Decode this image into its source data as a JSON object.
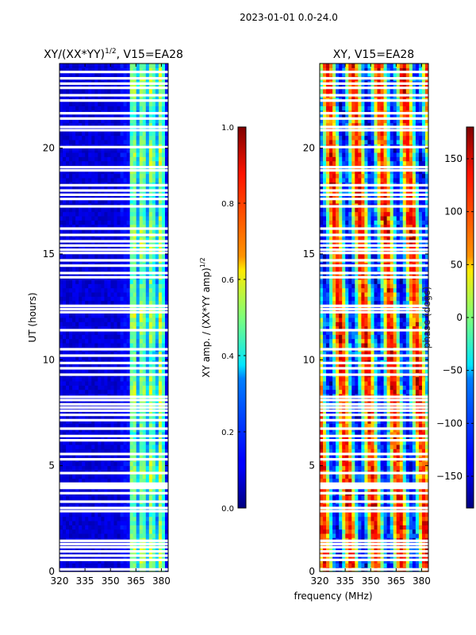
{
  "figure_title": "2023-01-01 0.0-24.0",
  "shared_xlabel": "frequency (MHz)",
  "chart_data": [
    {
      "type": "heatmap",
      "title": "XY/(XX*YY)",
      "title_sup": "1/2",
      "title_suffix": ", V15=EA28",
      "xlabel": "",
      "ylabel": "UT (hours)",
      "xlim": [
        320,
        384
      ],
      "ylim": [
        0,
        24
      ],
      "x_ticks": [
        320,
        335,
        350,
        365,
        380
      ],
      "y_ticks": [
        0,
        5,
        10,
        15,
        20
      ],
      "colormap": "jet",
      "colorbar": {
        "label": "XY amp. / (XX*YY amp)",
        "label_sup": "1/2",
        "range": [
          0.0,
          1.0
        ],
        "ticks": [
          "0.0",
          "0.2",
          "0.4",
          "0.6",
          "0.8",
          "1.0"
        ],
        "tick_values": [
          0.0,
          0.2,
          0.4,
          0.6,
          0.8,
          1.0
        ]
      },
      "description": "Mostly low values (~0.05-0.15) below ~362 MHz; band 362-382 MHz shows elevated normalized amplitude ~0.3-0.7",
      "flagged_ut_rows": [
        0.1,
        0.55,
        0.75,
        0.95,
        1.15,
        1.3,
        1.45,
        2.85,
        3.0,
        3.3,
        3.7,
        3.95,
        4.05,
        4.15,
        4.65,
        5.3,
        5.55,
        6.2,
        6.4,
        6.75,
        7.15,
        7.4,
        7.6,
        7.75,
        7.9,
        8.1,
        8.25,
        9.3,
        9.6,
        9.85,
        10.2,
        10.5,
        11.4,
        12.25,
        12.4,
        12.55,
        13.9,
        14.1,
        14.45,
        14.7,
        15.05,
        15.2,
        15.4,
        15.6,
        15.9,
        16.2,
        17.25,
        17.6,
        17.8,
        18.0,
        18.25,
        18.95,
        19.1,
        20.05,
        20.85,
        21.0,
        21.4,
        21.65,
        22.25,
        22.5,
        22.85,
        23.05,
        23.3,
        23.6
      ]
    },
    {
      "type": "heatmap",
      "title": "XY, V15=EA28",
      "xlabel": "frequency (MHz)",
      "ylabel": "",
      "xlim": [
        320,
        384
      ],
      "ylim": [
        0,
        24
      ],
      "x_ticks": [
        320,
        335,
        350,
        365,
        380
      ],
      "y_ticks": [
        0,
        5,
        10,
        15,
        20
      ],
      "colormap": "jet",
      "colorbar": {
        "label": "phase (degs)",
        "range": [
          -180,
          180
        ],
        "ticks": [
          "−150",
          "−100",
          "−50",
          "0",
          "50",
          "100",
          "150"
        ],
        "tick_values": [
          -150,
          -100,
          -50,
          0,
          50,
          100,
          150
        ]
      },
      "description": "XY phase varying across full -180..180 range with vertical striping in frequency and banded structure in time",
      "flagged_ut_rows": [
        0.1,
        0.55,
        0.75,
        0.95,
        1.15,
        1.3,
        1.45,
        2.85,
        3.0,
        3.3,
        3.7,
        3.95,
        4.05,
        4.15,
        4.65,
        5.3,
        5.55,
        6.2,
        6.4,
        6.75,
        7.15,
        7.4,
        7.6,
        7.75,
        7.9,
        8.1,
        8.25,
        9.3,
        9.6,
        9.85,
        10.2,
        10.5,
        11.4,
        12.25,
        12.4,
        12.55,
        13.9,
        14.1,
        14.45,
        14.7,
        15.05,
        15.2,
        15.4,
        15.6,
        15.9,
        16.2,
        17.25,
        17.6,
        17.8,
        18.0,
        18.25,
        18.95,
        19.1,
        20.05,
        20.85,
        21.0,
        21.4,
        21.65,
        22.25,
        22.5,
        22.85,
        23.05,
        23.3,
        23.6
      ]
    }
  ]
}
